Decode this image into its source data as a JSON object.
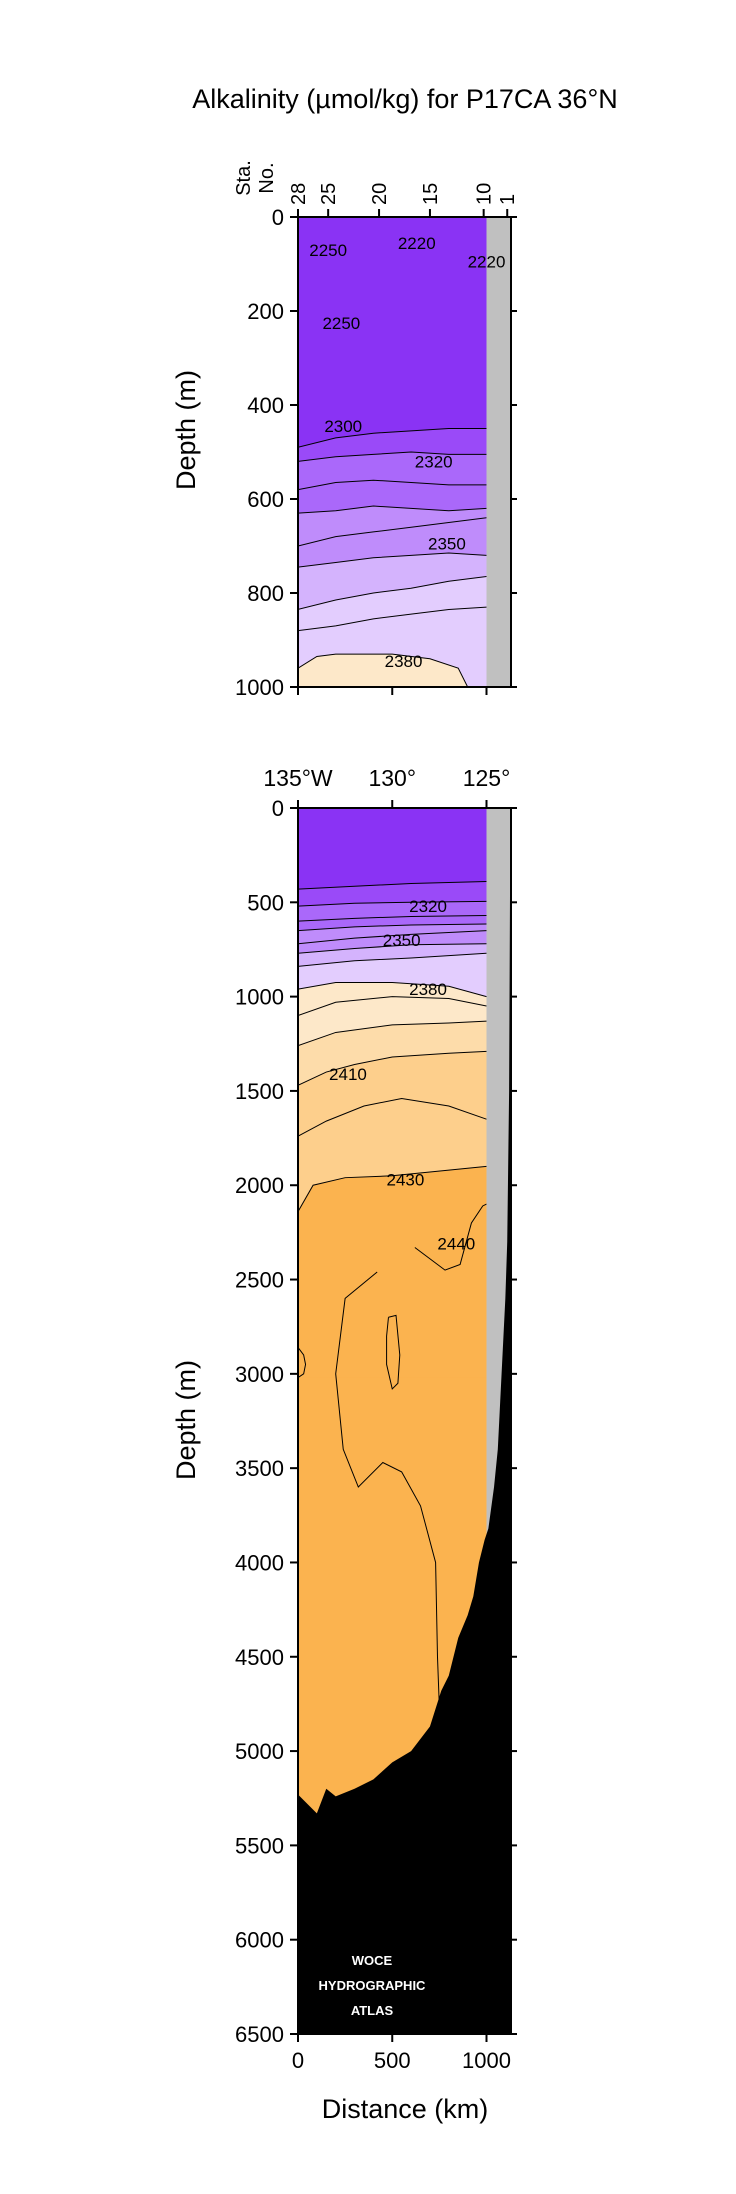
{
  "title": "Alkalinity (µmol/kg) for P17CA 36°N",
  "colors": {
    "alk_2220": "#8a33f4",
    "alk_2300": "#9a4af8",
    "alk_2320": "#aa68fa",
    "alk_2340": "#bf8cfb",
    "alk_2360": "#d4b3fd",
    "alk_2370": "#e3cdfe",
    "alk_2380": "#fde8c9",
    "alk_2400": "#fddcaa",
    "alk_2410": "#fdcf8c",
    "alk_2430": "#fbb34f",
    "bottom": "#000000",
    "shelf": "#c0c0c0"
  },
  "watermark": [
    "WOCE",
    "HYDROGRAPHIC",
    "ATLAS"
  ],
  "chart_data": [
    {
      "type": "contour",
      "panel": "upper",
      "ylabel": "Depth (m)",
      "ylim": [
        1000,
        0
      ],
      "xlim": [
        0,
        1130
      ],
      "y_ticks": [
        0,
        200,
        400,
        600,
        800,
        1000
      ],
      "station_axis_label": [
        "Sta.",
        "No."
      ],
      "station_ticks": [
        {
          "label": "28",
          "x": 0
        },
        {
          "label": "25",
          "x": 160
        },
        {
          "label": "20",
          "x": 430
        },
        {
          "label": "15",
          "x": 700
        },
        {
          "label": "10",
          "x": 985
        },
        {
          "label": "1",
          "x": 1110
        }
      ],
      "contour_labels": [
        {
          "text": "2250",
          "x": 160,
          "y": 70
        },
        {
          "text": "2220",
          "x": 630,
          "y": 55
        },
        {
          "text": "2220",
          "x": 1000,
          "y": 95
        },
        {
          "text": "2250",
          "x": 230,
          "y": 225
        },
        {
          "text": "2300",
          "x": 240,
          "y": 445
        },
        {
          "text": "2320",
          "x": 720,
          "y": 520
        },
        {
          "text": "2350",
          "x": 790,
          "y": 695
        },
        {
          "text": "2380",
          "x": 560,
          "y": 945
        }
      ],
      "isolines": [
        {
          "level": 2300,
          "points": [
            [
              0,
              490
            ],
            [
              200,
              470
            ],
            [
              400,
              460
            ],
            [
              600,
              455
            ],
            [
              800,
              450
            ],
            [
              1000,
              450
            ]
          ]
        },
        {
          "level": 2320,
          "points": [
            [
              0,
              520
            ],
            [
              200,
              510
            ],
            [
              400,
              505
            ],
            [
              600,
              500
            ],
            [
              800,
              505
            ],
            [
              1000,
              505
            ]
          ]
        },
        {
          "level": 2330,
          "points": [
            [
              0,
              580
            ],
            [
              200,
              565
            ],
            [
              400,
              560
            ],
            [
              600,
              565
            ],
            [
              800,
              570
            ],
            [
              1000,
              570
            ]
          ]
        },
        {
          "level": 2340,
          "points": [
            [
              0,
              630
            ],
            [
              200,
              625
            ],
            [
              400,
              615
            ],
            [
              600,
              620
            ],
            [
              800,
              625
            ],
            [
              1000,
              620
            ]
          ]
        },
        {
          "level": 2350,
          "points": [
            [
              0,
              700
            ],
            [
              200,
              680
            ],
            [
              400,
              670
            ],
            [
              600,
              660
            ],
            [
              800,
              650
            ],
            [
              1000,
              640
            ]
          ]
        },
        {
          "level": 2360,
          "points": [
            [
              0,
              745
            ],
            [
              200,
              735
            ],
            [
              400,
              725
            ],
            [
              600,
              720
            ],
            [
              800,
              715
            ],
            [
              1000,
              720
            ]
          ]
        },
        {
          "level": 2370,
          "points": [
            [
              0,
              835
            ],
            [
              200,
              815
            ],
            [
              400,
              800
            ],
            [
              600,
              790
            ],
            [
              800,
              775
            ],
            [
              1000,
              765
            ]
          ]
        },
        {
          "level": 2375,
          "points": [
            [
              0,
              880
            ],
            [
              200,
              870
            ],
            [
              400,
              855
            ],
            [
              600,
              845
            ],
            [
              800,
              835
            ],
            [
              1000,
              830
            ]
          ]
        },
        {
          "level": 2380,
          "points": [
            [
              0,
              960
            ],
            [
              100,
              935
            ],
            [
              200,
              930
            ],
            [
              500,
              930
            ],
            [
              700,
              940
            ],
            [
              850,
              960
            ],
            [
              900,
              1000
            ]
          ]
        }
      ],
      "shelf_from_km": 1000
    },
    {
      "type": "contour",
      "panel": "lower",
      "xlabel": "Distance (km)",
      "ylabel": "Depth (m)",
      "ylim": [
        6500,
        0
      ],
      "xlim": [
        0,
        1130
      ],
      "y_ticks": [
        0,
        500,
        1000,
        1500,
        2000,
        2500,
        3000,
        3500,
        4000,
        4500,
        5000,
        5500,
        6000,
        6500
      ],
      "x_ticks": [
        0,
        500,
        1000
      ],
      "lon_ticks": [
        {
          "label": "135°W",
          "x": 0
        },
        {
          "label": "130°",
          "x": 500
        },
        {
          "label": "125°",
          "x": 1000
        }
      ],
      "contour_labels": [
        {
          "text": "2320",
          "x": 690,
          "y": 520
        },
        {
          "text": "2350",
          "x": 550,
          "y": 700
        },
        {
          "text": "2380",
          "x": 690,
          "y": 960
        },
        {
          "text": "2410",
          "x": 265,
          "y": 1410
        },
        {
          "text": "2430",
          "x": 570,
          "y": 1970
        },
        {
          "text": "2440",
          "x": 840,
          "y": 2310
        }
      ],
      "isolines": [
        {
          "level": 2300,
          "points": [
            [
              0,
              430
            ],
            [
              300,
              415
            ],
            [
              600,
              400
            ],
            [
              1000,
              390
            ]
          ]
        },
        {
          "level": 2320,
          "points": [
            [
              0,
              520
            ],
            [
              300,
              505
            ],
            [
              600,
              500
            ],
            [
              1000,
              495
            ]
          ]
        },
        {
          "level": 2330,
          "points": [
            [
              0,
              600
            ],
            [
              300,
              585
            ],
            [
              600,
              575
            ],
            [
              1000,
              570
            ]
          ]
        },
        {
          "level": 2340,
          "points": [
            [
              0,
              650
            ],
            [
              300,
              630
            ],
            [
              600,
              620
            ],
            [
              1000,
              615
            ]
          ]
        },
        {
          "level": 2350,
          "points": [
            [
              0,
              720
            ],
            [
              300,
              690
            ],
            [
              600,
              670
            ],
            [
              1000,
              650
            ]
          ]
        },
        {
          "level": 2360,
          "points": [
            [
              0,
              770
            ],
            [
              300,
              745
            ],
            [
              600,
              725
            ],
            [
              1000,
              720
            ]
          ]
        },
        {
          "level": 2370,
          "points": [
            [
              0,
              840
            ],
            [
              300,
              810
            ],
            [
              600,
              795
            ],
            [
              1000,
              770
            ]
          ]
        },
        {
          "level": 2380,
          "points": [
            [
              0,
              960
            ],
            [
              200,
              925
            ],
            [
              500,
              925
            ],
            [
              800,
              945
            ],
            [
              1000,
              1000
            ]
          ]
        },
        {
          "level": 2390,
          "points": [
            [
              0,
              1100
            ],
            [
              200,
              1030
            ],
            [
              500,
              1000
            ],
            [
              800,
              1010
            ],
            [
              1000,
              1050
            ]
          ]
        },
        {
          "level": 2400,
          "points": [
            [
              0,
              1260
            ],
            [
              200,
              1190
            ],
            [
              500,
              1150
            ],
            [
              800,
              1140
            ],
            [
              1000,
              1130
            ]
          ]
        },
        {
          "level": 2410,
          "points": [
            [
              0,
              1470
            ],
            [
              150,
              1400
            ],
            [
              300,
              1360
            ],
            [
              500,
              1320
            ],
            [
              800,
              1300
            ],
            [
              1000,
              1290
            ]
          ]
        },
        {
          "level": 2420,
          "points": [
            [
              0,
              1740
            ],
            [
              150,
              1660
            ],
            [
              350,
              1580
            ],
            [
              550,
              1540
            ],
            [
              800,
              1580
            ],
            [
              1000,
              1650
            ]
          ]
        },
        {
          "level": 2430,
          "points": [
            [
              0,
              2140
            ],
            [
              80,
              2000
            ],
            [
              250,
              1960
            ],
            [
              500,
              1950
            ],
            [
              800,
              1920
            ],
            [
              1000,
              1900
            ]
          ]
        },
        {
          "level": 2440,
          "points": [
            [
              620,
              2330
            ],
            [
              780,
              2450
            ],
            [
              860,
              2420
            ],
            [
              920,
              2200
            ],
            [
              980,
              2110
            ],
            [
              1000,
              2100
            ]
          ]
        },
        {
          "level": 2440,
          "points": [
            [
              420,
              2460
            ],
            [
              250,
              2600
            ],
            [
              200,
              3000
            ],
            [
              240,
              3400
            ],
            [
              320,
              3600
            ],
            [
              450,
              3470
            ],
            [
              550,
              3520
            ],
            [
              650,
              3700
            ],
            [
              730,
              4000
            ],
            [
              740,
              4500
            ],
            [
              750,
              4770
            ]
          ]
        },
        {
          "level": 2440,
          "points": [
            [
              480,
              2700
            ],
            [
              520,
              2690
            ],
            [
              540,
              2900
            ],
            [
              530,
              3050
            ],
            [
              500,
              3080
            ],
            [
              470,
              2950
            ],
            [
              470,
              2800
            ],
            [
              480,
              2700
            ]
          ]
        },
        {
          "level": 2440,
          "points": [
            [
              0,
              2860
            ],
            [
              30,
              2900
            ],
            [
              40,
              2950
            ],
            [
              30,
              3000
            ],
            [
              0,
              3020
            ]
          ]
        }
      ],
      "bottom_profile": [
        [
          0,
          5230
        ],
        [
          100,
          5330
        ],
        [
          150,
          5200
        ],
        [
          200,
          5240
        ],
        [
          300,
          5200
        ],
        [
          400,
          5150
        ],
        [
          500,
          5060
        ],
        [
          600,
          5000
        ],
        [
          700,
          4870
        ],
        [
          760,
          4680
        ],
        [
          800,
          4600
        ],
        [
          850,
          4400
        ],
        [
          900,
          4280
        ],
        [
          930,
          4180
        ],
        [
          960,
          4000
        ],
        [
          990,
          3880
        ],
        [
          1010,
          3820
        ],
        [
          1040,
          3600
        ],
        [
          1060,
          3400
        ],
        [
          1070,
          3200
        ],
        [
          1080,
          3000
        ],
        [
          1090,
          2800
        ],
        [
          1100,
          2600
        ],
        [
          1110,
          2300
        ],
        [
          1120,
          1500
        ],
        [
          1125,
          400
        ],
        [
          1130,
          0
        ]
      ],
      "shelf_from_km": 1000
    }
  ]
}
